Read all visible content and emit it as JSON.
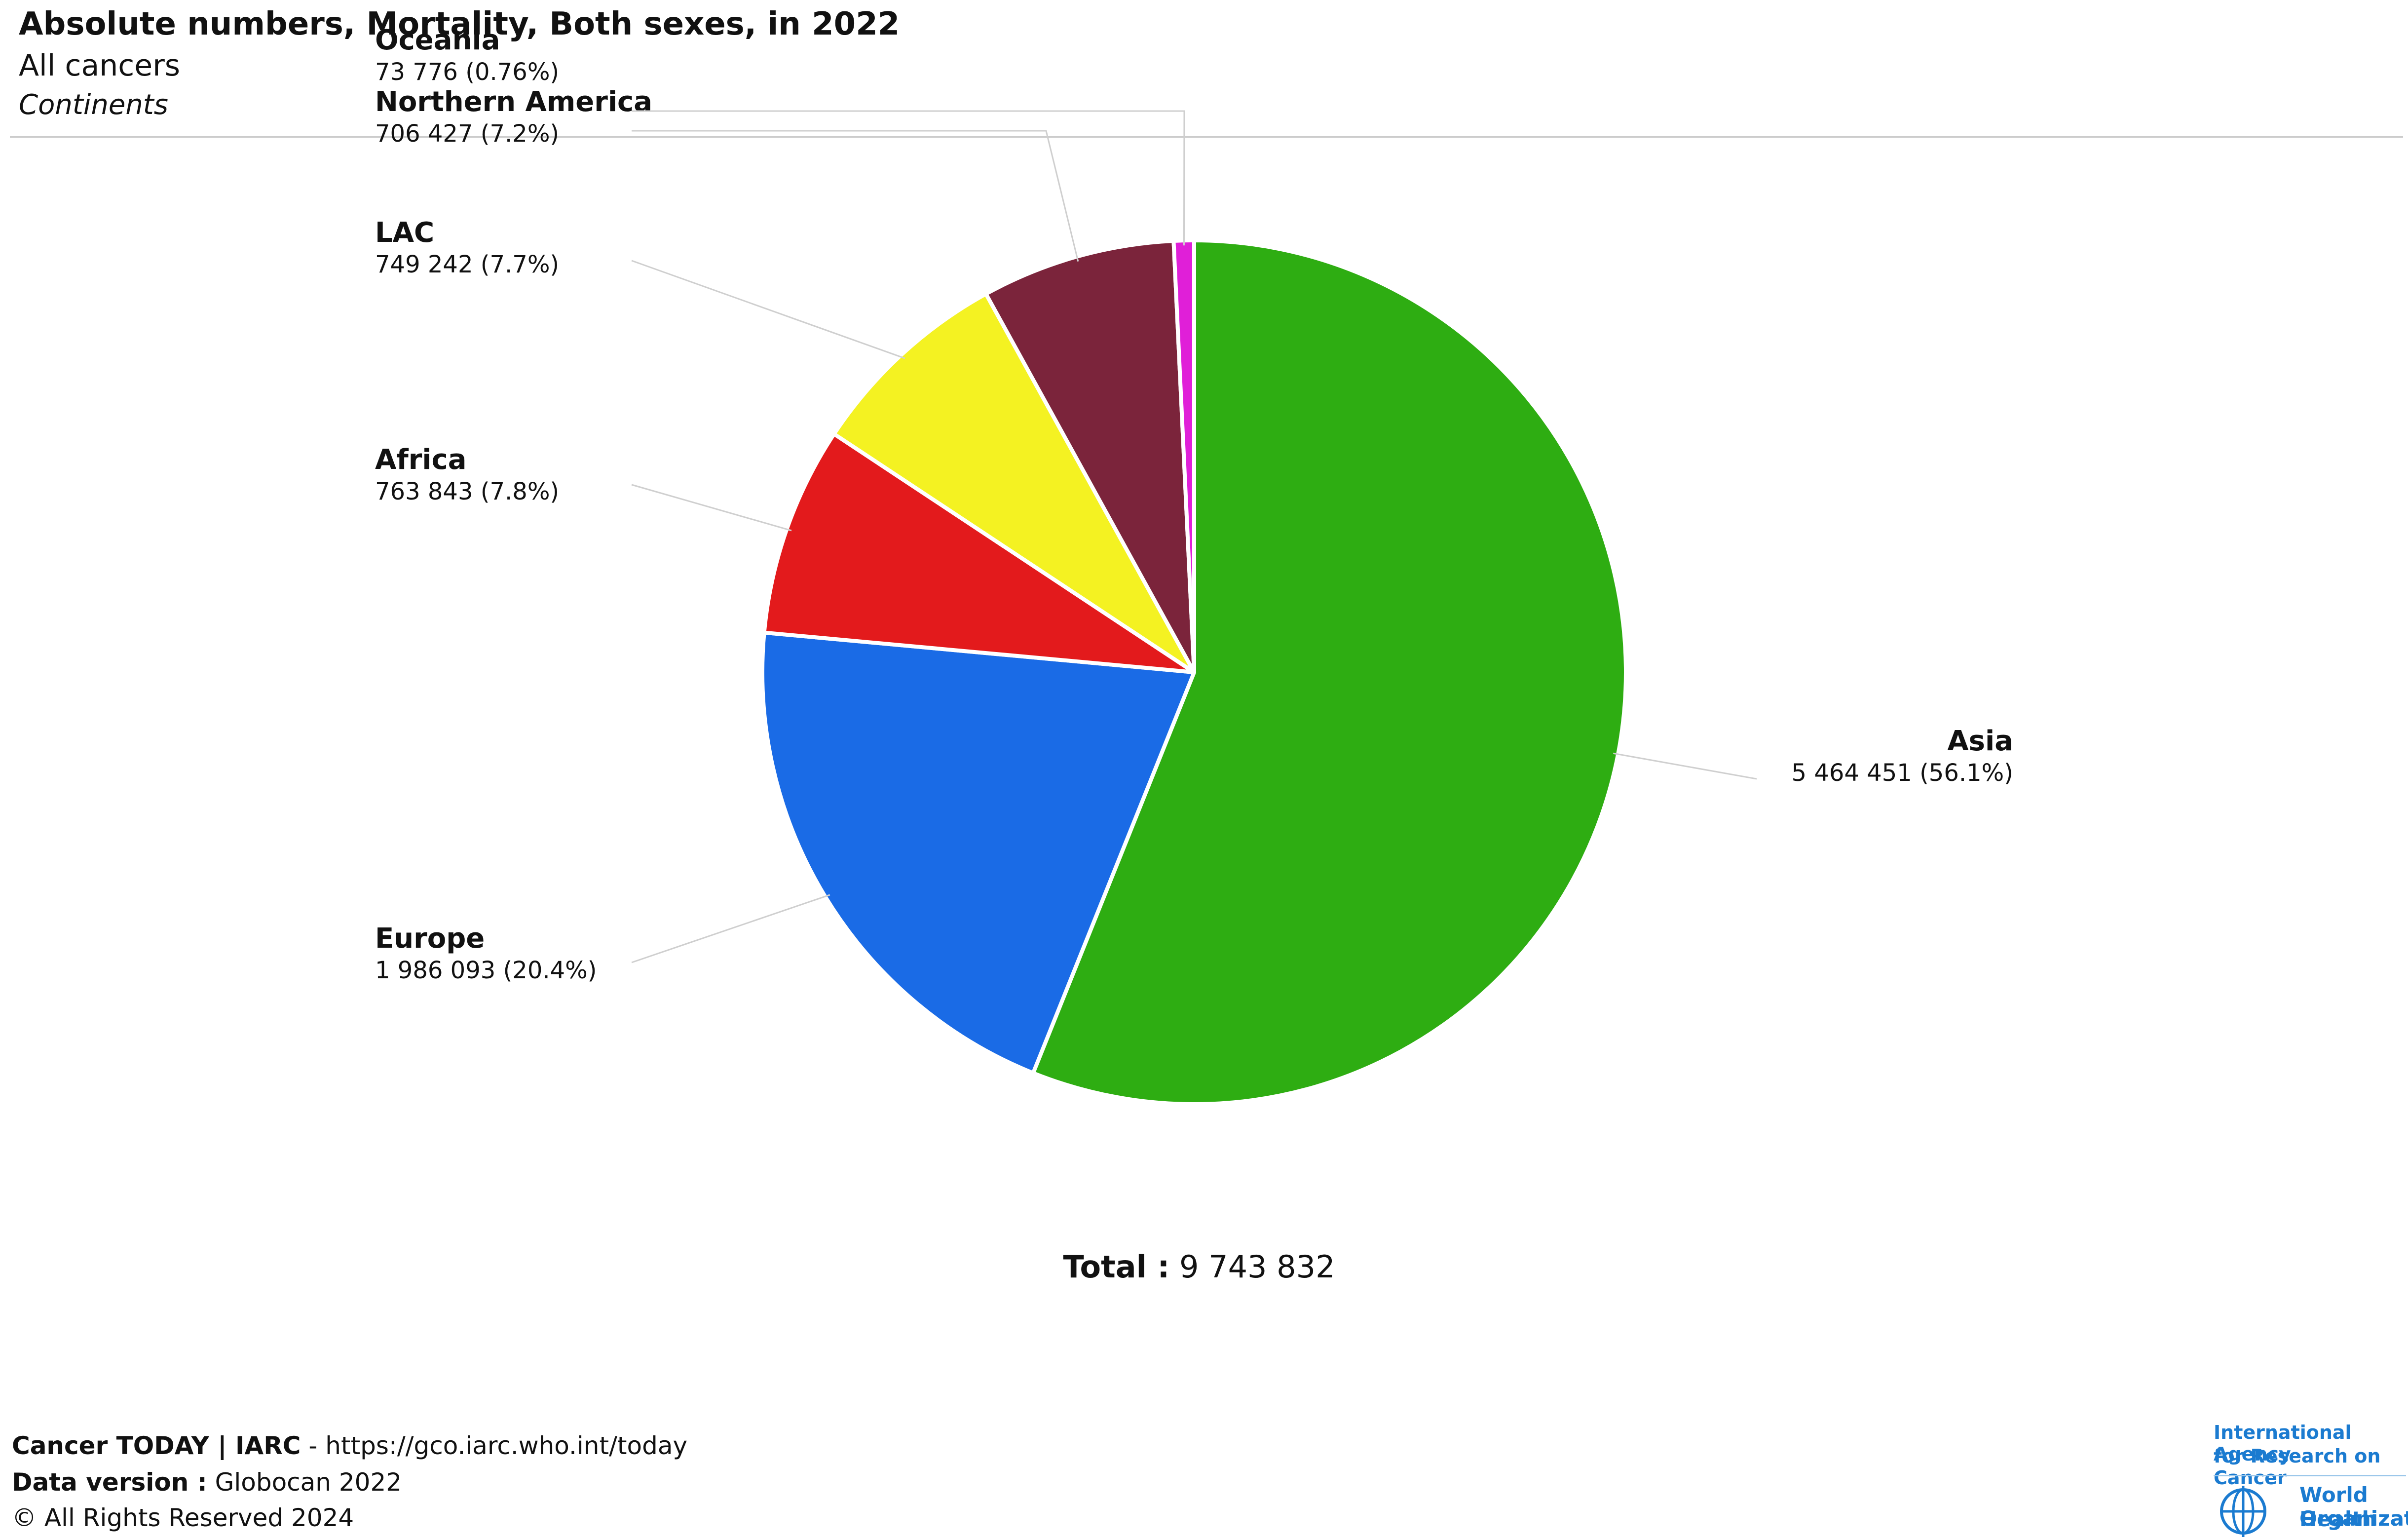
{
  "header": {
    "title": "Absolute numbers, Mortality, Both sexes, in 2022",
    "subtitle": "All cancers",
    "grouping": "Continents"
  },
  "chart_data": {
    "type": "pie",
    "title": "Absolute numbers, Mortality, Both sexes, in 2022",
    "slices": [
      {
        "name": "Asia",
        "value": 5464451,
        "value_label": "5 464 451 (56.1%)",
        "color": "#2EAD12"
      },
      {
        "name": "Europe",
        "value": 1986093,
        "value_label": "1 986 093 (20.4%)",
        "color": "#1A6BE6"
      },
      {
        "name": "Africa",
        "value": 763843,
        "value_label": "763 843 (7.8%)",
        "color": "#E31A1C"
      },
      {
        "name": "LAC",
        "value": 749242,
        "value_label": "749 242 (7.7%)",
        "color": "#F4F222"
      },
      {
        "name": "Northern America",
        "value": 706427,
        "value_label": "706 427 (7.2%)",
        "color": "#7B243B"
      },
      {
        "name": "Oceania",
        "value": 73776,
        "value_label": "73 776 (0.76%)",
        "color": "#E01FD8"
      }
    ],
    "total_label": "Total :",
    "total_value": "9 743 832"
  },
  "footer": {
    "line1_bold": "Cancer TODAY | IARC",
    "line1_rest": " - https://gco.iarc.who.int/today",
    "line2_bold": "Data version :",
    "line2_rest": " Globocan 2022",
    "line3": "© All Rights Reserved 2024"
  },
  "logos": {
    "iarc_line1": "International Agency",
    "iarc_line2": "for Research on Cancer",
    "who_line1": "World Health",
    "who_line2": "Organization"
  }
}
